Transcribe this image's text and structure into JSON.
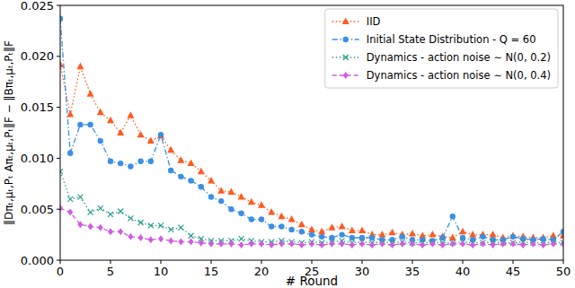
{
  "chart_data": {
    "type": "line",
    "x_label": "# Round",
    "y_label": "‖Dπₜ,μₜ,Pₜ Aπₜ,μₜ,Pₜ‖F − ‖Bπₜ,μₜ,Pₜ‖F",
    "x": [
      0,
      1,
      2,
      3,
      4,
      5,
      6,
      7,
      8,
      9,
      10,
      11,
      12,
      13,
      14,
      15,
      16,
      17,
      18,
      19,
      20,
      21,
      22,
      23,
      24,
      25,
      26,
      27,
      28,
      29,
      30,
      31,
      32,
      33,
      34,
      35,
      36,
      37,
      38,
      39,
      40,
      41,
      42,
      43,
      44,
      45,
      46,
      47,
      48,
      49,
      50
    ],
    "xlim": [
      0,
      50
    ],
    "xticks": [
      0,
      5,
      10,
      15,
      20,
      25,
      30,
      35,
      40,
      45,
      50
    ],
    "ylim": [
      0,
      0.025
    ],
    "yticks": [
      {
        "value": 0,
        "label": "0.000"
      },
      {
        "value": 0.005,
        "label": "0.005"
      },
      {
        "value": 0.01,
        "label": "0.010"
      },
      {
        "value": 0.015,
        "label": "0.015"
      },
      {
        "value": 0.02,
        "label": "0.020"
      },
      {
        "value": 0.025,
        "label": "0.025"
      }
    ],
    "grid": false,
    "legend": "upper right",
    "series": [
      {
        "name": "IID",
        "color": "#ff5a1f",
        "marker": "triangle",
        "line_style": "dotted",
        "values": [
          0.0192,
          0.0143,
          0.019,
          0.0163,
          0.0145,
          0.0137,
          0.0125,
          0.0142,
          0.0123,
          0.0117,
          0.0122,
          0.0108,
          0.0098,
          0.0095,
          0.0087,
          0.0078,
          0.0068,
          0.0067,
          0.0062,
          0.0057,
          0.0054,
          0.0047,
          0.0043,
          0.004,
          0.0035,
          0.003,
          0.0028,
          0.0032,
          0.0033,
          0.0029,
          0.0029,
          0.0025,
          0.0025,
          0.0027,
          0.0025,
          0.0026,
          0.0024,
          0.0025,
          0.0023,
          0.0022,
          0.0028,
          0.0025,
          0.0025,
          0.0025,
          0.0022,
          0.0024,
          0.0023,
          0.0022,
          0.0022,
          0.0024,
          0.0024
        ]
      },
      {
        "name": "Initial State Distribution - Q = 60",
        "color": "#3b8fe4",
        "marker": "circle",
        "line_style": "dashdot",
        "values": [
          0.0237,
          0.0105,
          0.0133,
          0.0133,
          0.0117,
          0.0097,
          0.0095,
          0.0092,
          0.0097,
          0.0097,
          0.0123,
          0.0088,
          0.0082,
          0.0078,
          0.0072,
          0.0062,
          0.0058,
          0.005,
          0.0046,
          0.004,
          0.004,
          0.0033,
          0.0033,
          0.003,
          0.0028,
          0.0025,
          0.0023,
          0.0022,
          0.0025,
          0.0022,
          0.0022,
          0.0022,
          0.002,
          0.002,
          0.0023,
          0.002,
          0.002,
          0.0019,
          0.0022,
          0.0043,
          0.0022,
          0.002,
          0.0023,
          0.002,
          0.002,
          0.0023,
          0.0021,
          0.002,
          0.0021,
          0.002,
          0.0028
        ]
      },
      {
        "name": "Dynamics - action noise ∼ N(0, 0.2)",
        "color": "#2a9d8f",
        "marker": "x",
        "line_style": "dotted",
        "values": [
          0.0087,
          0.006,
          0.0062,
          0.0047,
          0.0051,
          0.0045,
          0.0048,
          0.0041,
          0.0037,
          0.0034,
          0.0034,
          0.003,
          0.0032,
          0.0024,
          0.0021,
          0.0019,
          0.0019,
          0.0019,
          0.0021,
          0.0019,
          0.0018,
          0.0018,
          0.0019,
          0.0018,
          0.0017,
          0.0018,
          0.0017,
          0.0018,
          0.0019,
          0.0017,
          0.0018,
          0.0017,
          0.0018,
          0.0017,
          0.0018,
          0.0017,
          0.0017,
          0.0018,
          0.0017,
          0.0017,
          0.0018,
          0.0017,
          0.0017,
          0.0018,
          0.0017,
          0.0017,
          0.0018,
          0.0017,
          0.0017,
          0.0018,
          0.0017
        ]
      },
      {
        "name": "Dynamics - action noise ∼ N(0, 0.4)",
        "color": "#d15ce0",
        "marker": "diamond",
        "line_style": "dashed",
        "values": [
          0.0051,
          0.0047,
          0.0035,
          0.0033,
          0.0032,
          0.0028,
          0.0028,
          0.0023,
          0.0022,
          0.002,
          0.0021,
          0.0019,
          0.0018,
          0.0018,
          0.0017,
          0.0016,
          0.0016,
          0.0016,
          0.0015,
          0.0016,
          0.0016,
          0.0015,
          0.0016,
          0.0016,
          0.0015,
          0.0016,
          0.0015,
          0.0016,
          0.0016,
          0.0015,
          0.0016,
          0.0015,
          0.0016,
          0.0015,
          0.0016,
          0.0016,
          0.0015,
          0.0016,
          0.0015,
          0.0016,
          0.0016,
          0.0015,
          0.0016,
          0.0015,
          0.0016,
          0.0016,
          0.0015,
          0.0016,
          0.0015,
          0.0016,
          0.0016
        ]
      }
    ]
  }
}
